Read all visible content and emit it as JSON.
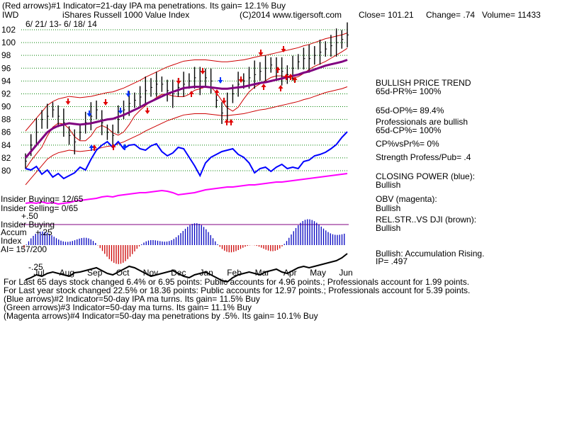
{
  "header": {
    "line1_left": "(Red arrows)#1 Indicator=21-day IPA ma penetrations. Its gain= 12.1% Buy",
    "symbol": "IWD",
    "name": "iShares Russell 1000 Value Index",
    "copyright": "(C)2014 www.tigersoft.com",
    "close": "Close=  101.21",
    "change": "Change= .74",
    "volume": "Volume= 11433",
    "date_range": "6/ 21/ 13-  6/ 18/ 14"
  },
  "right_panel": {
    "trend_title": "BULLISH PRICE TREND",
    "pr": "65d-PR%= 100%",
    "op": "65d-OP%= 89.4%",
    "pros": "Professionals are bullish",
    "cp": "65d-CP%= 100%",
    "cpvspr": "CP%vsPr%=  0%",
    "strength": "Strength Profess/Pub= .4",
    "closing_power": "CLOSING POWER (blue):",
    "closing_power_val": "Bullish",
    "obv": "OBV (magenta):",
    "obv_val": "Bullish",
    "relstr": "REL.STR..VS DJI (brown):",
    "relstr_val": "Bullish",
    "accum": "Bullish: Accumulation Rising.",
    "ip": "IP=  .497"
  },
  "left_labels": {
    "insider_buying": "Insider Buying= 12/65",
    "insider_selling": "Insider Selling= 0/65",
    "plus50": "+.50",
    "insider_buying2": "Insider Buying",
    "accum": "Accum",
    "plus25": "+.25",
    "index": "Index",
    "ai": "AI= 157/200",
    "minus25": "-.25"
  },
  "footer": {
    "line1": "For Last 65 days stock changed  6.4% or  6.95 points:  Public accounts for  4.96 points.;  Professionals account for  1.99 points.",
    "line2": "For Last year stock changed  22.5% or 18.36 points:  Public accounts for  12.97 points.;  Professionals account for  5.39 points.",
    "line3": "(Blue arrows)#2 Indicator=50-day IPA ma turns. Its gain= 11.5% Buy",
    "line4": "(Green arrows)#3 Indicator=50-day ma turns. Its gain= 11.1% Buy",
    "line5": "(Magenta arrows)#4 Indicator=50-day ma penetrations by .5%. Its gain= 10.1% Buy"
  },
  "chart_data": {
    "type": "line",
    "title": "iShares Russell 1000 Value Index",
    "y_ticks": [
      80,
      82,
      84,
      86,
      88,
      90,
      92,
      94,
      96,
      98,
      100,
      102
    ],
    "ylim": [
      79,
      102.5
    ],
    "x_ticks": [
      "Jul",
      "Aug",
      "Sep",
      "Oct",
      "Nov",
      "Dec",
      "Jan",
      "Feb",
      "Mar",
      "Apr",
      "May",
      "Jun"
    ],
    "colors": {
      "price": "#000000",
      "ma50": "#800080",
      "bands": "#cc0000",
      "closing_power": "#0000ff",
      "obv": "#ff00ff",
      "relstr": "#000000",
      "accum_pos": "#0000c0",
      "accum_neg": "#cc0000",
      "grid": "#008000",
      "ref_line": "#800080"
    },
    "series": [
      {
        "name": "price",
        "values": [
          81.5,
          84,
          86,
          88,
          88.5,
          89.5,
          88.5,
          87.5,
          85.5,
          84.5,
          86,
          87.5,
          88.5,
          89.5,
          87.5,
          86,
          85.5,
          88,
          89.5,
          90.5,
          91,
          91.5,
          92.5,
          93,
          93.5,
          93.5,
          92.5,
          92,
          93,
          93.5,
          94,
          94.5,
          94,
          94.5,
          94,
          91,
          89,
          90,
          92,
          93.5,
          94,
          94.5,
          95,
          95.5,
          96,
          96.5,
          96,
          95.5,
          95,
          96,
          97,
          97.5,
          97.5,
          98,
          98.5,
          99,
          99.5,
          100,
          100.5,
          101.2
        ]
      },
      {
        "name": "50-day ma",
        "values": [
          82,
          83,
          84,
          85,
          86,
          86.6,
          87,
          87.2,
          87.4,
          87.3,
          87.2,
          87.3,
          87.4,
          87.6,
          87.8,
          88,
          88.1,
          88.4,
          88.7,
          89.1,
          89.5,
          89.9,
          90.4,
          90.8,
          91.2,
          91.6,
          92,
          92.3,
          92.6,
          92.9,
          93,
          93.1,
          93.1,
          93.1,
          93,
          92.9,
          92.8,
          92.8,
          92.9,
          93,
          93.1,
          93.3,
          93.5,
          93.7,
          93.8,
          94,
          94.2,
          94.4,
          94.6,
          94.8,
          95,
          95.3,
          95.5,
          95.8,
          96.1,
          96.4,
          96.6,
          96.8,
          97,
          97.3
        ]
      }
    ]
  }
}
